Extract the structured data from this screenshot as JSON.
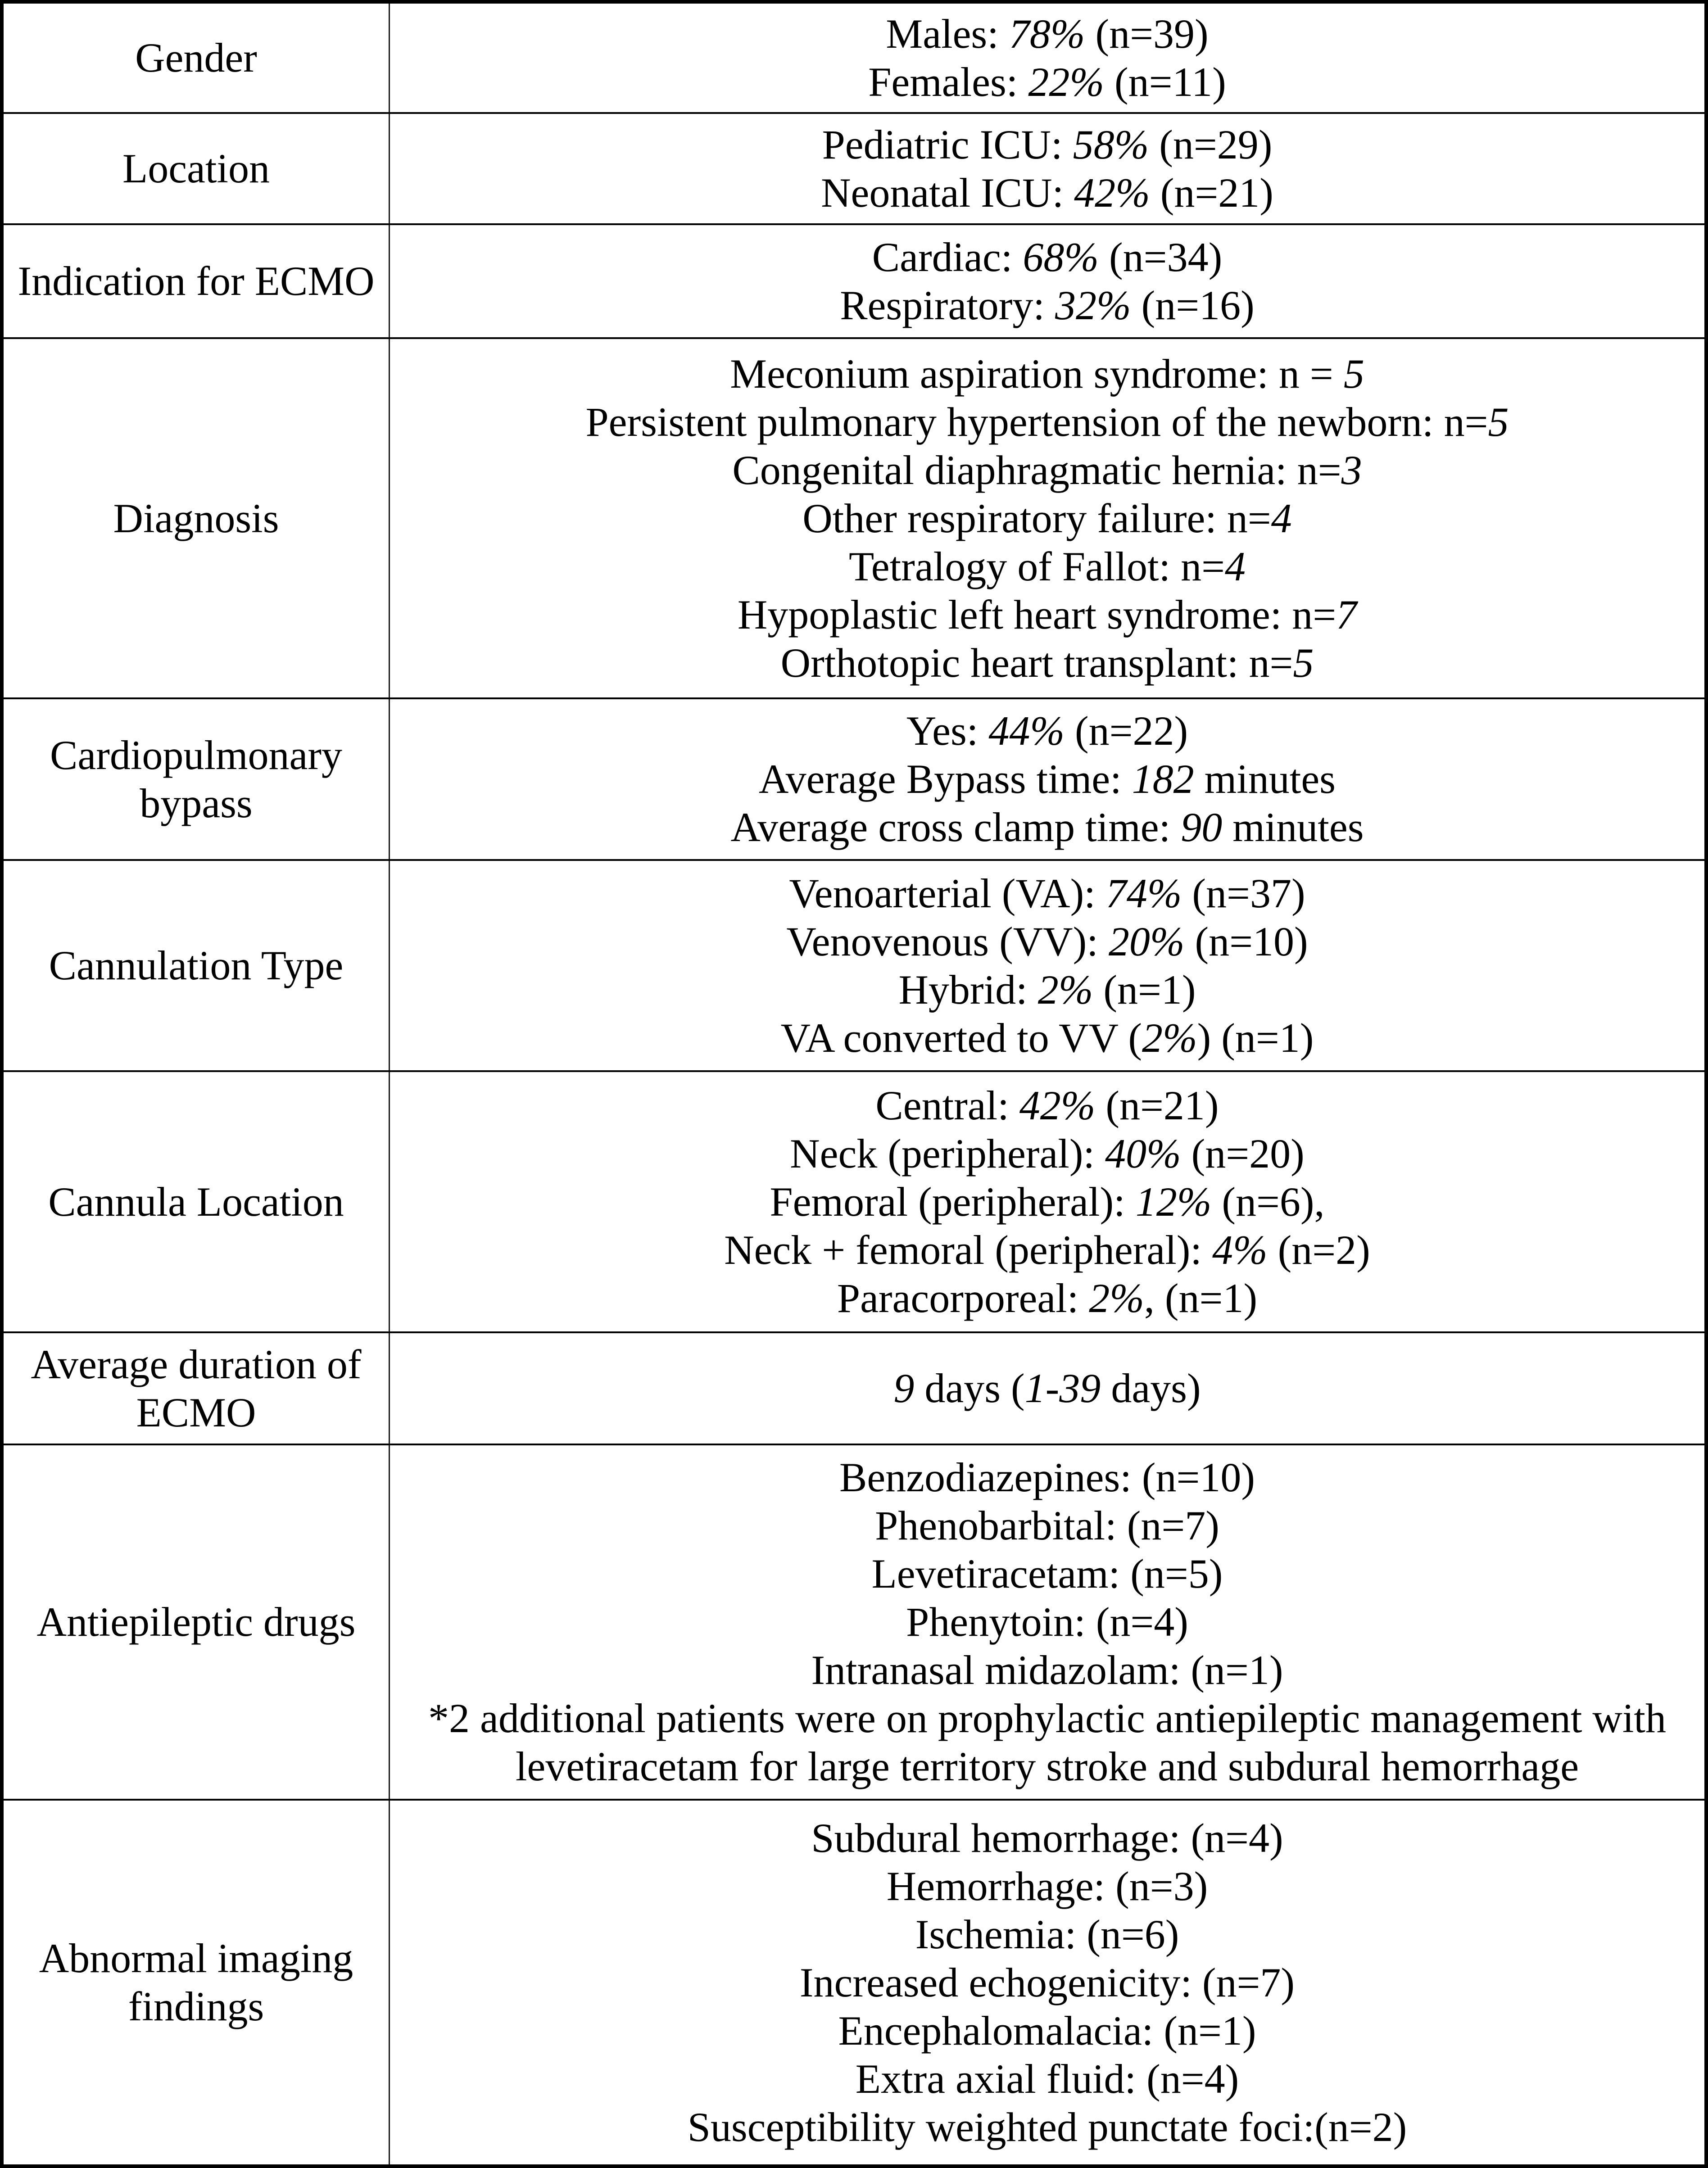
{
  "colors": {
    "background": "#ffffff",
    "text": "#000000",
    "grid_heavy": "#000000",
    "grid_light": "#1a1a1a"
  },
  "table": {
    "rows": [
      {
        "label": "Gender",
        "lines": [
          [
            {
              "t": "Males: "
            },
            {
              "t": "78%",
              "i": true
            },
            {
              "t": " (n=39)"
            }
          ],
          [
            {
              "t": "Females: "
            },
            {
              "t": "22%",
              "i": true
            },
            {
              "t": " (n=11)"
            }
          ]
        ]
      },
      {
        "label": "Location",
        "lines": [
          [
            {
              "t": "Pediatric ICU: "
            },
            {
              "t": "58%",
              "i": true
            },
            {
              "t": " (n=29)"
            }
          ],
          [
            {
              "t": "Neonatal ICU: "
            },
            {
              "t": "42%",
              "i": true
            },
            {
              "t": " (n=21)"
            }
          ]
        ]
      },
      {
        "label": "Indication for ECMO",
        "lines": [
          [
            {
              "t": "Cardiac: "
            },
            {
              "t": "68%",
              "i": true
            },
            {
              "t": " (n=34)"
            }
          ],
          [
            {
              "t": "Respiratory: "
            },
            {
              "t": "32%",
              "i": true
            },
            {
              "t": " (n=16)"
            }
          ]
        ]
      },
      {
        "label": "Diagnosis",
        "lines": [
          [
            {
              "t": "Meconium aspiration syndrome: n = "
            },
            {
              "t": "5",
              "i": true
            }
          ],
          [
            {
              "t": "Persistent pulmonary hypertension of the newborn: n="
            },
            {
              "t": "5",
              "i": true
            }
          ],
          [
            {
              "t": "Congenital diaphragmatic hernia: n="
            },
            {
              "t": "3",
              "i": true
            }
          ],
          [
            {
              "t": "Other respiratory failure: n="
            },
            {
              "t": "4",
              "i": true
            }
          ],
          [
            {
              "t": "Tetralogy of Fallot: n="
            },
            {
              "t": "4",
              "i": true
            }
          ],
          [
            {
              "t": "Hypoplastic left heart syndrome: n="
            },
            {
              "t": "7",
              "i": true
            }
          ],
          [
            {
              "t": "Orthotopic heart transplant: n="
            },
            {
              "t": "5",
              "i": true
            }
          ]
        ]
      },
      {
        "label": "Cardiopulmonary bypass",
        "lines": [
          [
            {
              "t": "Yes: "
            },
            {
              "t": "44%",
              "i": true
            },
            {
              "t": " (n=22)"
            }
          ],
          [
            {
              "t": "Average Bypass time: "
            },
            {
              "t": "182",
              "i": true
            },
            {
              "t": " minutes"
            }
          ],
          [
            {
              "t": "Average cross clamp time: "
            },
            {
              "t": "90",
              "i": true
            },
            {
              "t": " minutes"
            }
          ]
        ]
      },
      {
        "label": "Cannulation Type",
        "lines": [
          [
            {
              "t": "Venoarterial (VA): "
            },
            {
              "t": "74%",
              "i": true
            },
            {
              "t": " (n=37)"
            }
          ],
          [
            {
              "t": "Venovenous (VV): "
            },
            {
              "t": "20%",
              "i": true
            },
            {
              "t": " (n=10)"
            }
          ],
          [
            {
              "t": "Hybrid: "
            },
            {
              "t": "2%",
              "i": true
            },
            {
              "t": " (n=1)"
            }
          ],
          [
            {
              "t": "VA converted to VV ("
            },
            {
              "t": "2%",
              "i": true
            },
            {
              "t": ") (n=1)"
            }
          ]
        ]
      },
      {
        "label": "Cannula Location",
        "lines": [
          [
            {
              "t": "Central: "
            },
            {
              "t": "42%",
              "i": true
            },
            {
              "t": " (n=21)"
            }
          ],
          [
            {
              "t": "Neck (peripheral): "
            },
            {
              "t": "40%",
              "i": true
            },
            {
              "t": " (n=20)"
            }
          ],
          [
            {
              "t": "Femoral (peripheral): "
            },
            {
              "t": "12%",
              "i": true
            },
            {
              "t": " (n=6),"
            }
          ],
          [
            {
              "t": "Neck + femoral (peripheral): "
            },
            {
              "t": "4%",
              "i": true
            },
            {
              "t": " (n=2)"
            }
          ],
          [
            {
              "t": "Paracorporeal: "
            },
            {
              "t": "2%",
              "i": true
            },
            {
              "t": ", (n=1)"
            }
          ]
        ]
      },
      {
        "label": "Average duration of ECMO",
        "lines": [
          [
            {
              "t": "9",
              "i": true
            },
            {
              "t": " days ("
            },
            {
              "t": "1-39",
              "i": true
            },
            {
              "t": " days)"
            }
          ]
        ]
      },
      {
        "label": "Antiepileptic drugs",
        "lines": [
          [
            {
              "t": "Benzodiazepines: (n=10)"
            }
          ],
          [
            {
              "t": "Phenobarbital: (n=7)"
            }
          ],
          [
            {
              "t": "Levetiracetam: (n=5)"
            }
          ],
          [
            {
              "t": "Phenytoin: (n=4)"
            }
          ],
          [
            {
              "t": "Intranasal midazolam: (n=1)"
            }
          ],
          [
            {
              "t": "*2 additional patients were on prophylactic antiepileptic management with"
            }
          ],
          [
            {
              "t": "levetiracetam for large territory stroke and subdural hemorrhage"
            }
          ]
        ]
      },
      {
        "label": "Abnormal imaging findings",
        "lines": [
          [
            {
              "t": "Subdural hemorrhage: (n=4)"
            }
          ],
          [
            {
              "t": "Hemorrhage: (n=3)"
            }
          ],
          [
            {
              "t": "Ischemia: (n=6)"
            }
          ],
          [
            {
              "t": "Increased echogenicity: (n=7)"
            }
          ],
          [
            {
              "t": "Encephalomalacia: (n=1)"
            }
          ],
          [
            {
              "t": "Extra axial fluid: (n=4)"
            }
          ],
          [
            {
              "t": "Susceptibility weighted punctate foci:(n=2)"
            }
          ]
        ]
      }
    ]
  }
}
